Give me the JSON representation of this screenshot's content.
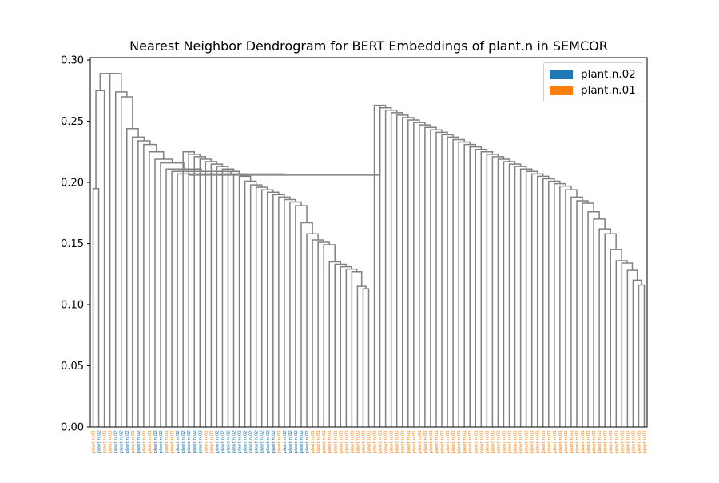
{
  "chart_data": {
    "type": "dendrogram",
    "title": "Nearest Neighbor Dendrogram for BERT Embeddings of plant.n in SEMCOR",
    "xlabel": "",
    "ylabel": "",
    "ylim": [
      0,
      0.302
    ],
    "yticks": [
      "0.00",
      "0.05",
      "0.10",
      "0.15",
      "0.20",
      "0.25",
      "0.30"
    ],
    "ytick_values": [
      0,
      0.05,
      0.1,
      0.15,
      0.2,
      0.25,
      0.3
    ],
    "grid": false,
    "legend_position": "top-right",
    "link_color": "#808080",
    "series": [
      {
        "name": "plant.n.02",
        "color": "#1f77b4"
      },
      {
        "name": "plant.n.01",
        "color": "#ff7f0e"
      }
    ],
    "leaves": [
      "plant.n.01",
      "plant.n.02",
      "plant.n.01",
      "plant.n.01",
      "plant.n.02",
      "plant.n.02",
      "plant.n.02",
      "plant.n.01",
      "plant.n.02",
      "plant.n.01",
      "plant.n.01",
      "plant.n.02",
      "plant.n.02",
      "plant.n.01",
      "plant.n.01",
      "plant.n.02",
      "plant.n.02",
      "plant.n.02",
      "plant.n.02",
      "plant.n.02",
      "plant.n.01",
      "plant.n.01",
      "plant.n.02",
      "plant.n.02",
      "plant.n.02",
      "plant.n.02",
      "plant.n.02",
      "plant.n.02",
      "plant.n.02",
      "plant.n.02",
      "plant.n.02",
      "plant.n.02",
      "plant.n.02",
      "plant.n.01",
      "plant.n.02",
      "plant.n.02",
      "plant.n.02",
      "plant.n.02",
      "plant.n.02",
      "plant.n.01",
      "plant.n.01",
      "plant.n.01",
      "plant.n.01",
      "plant.n.01",
      "plant.n.01",
      "plant.n.01",
      "plant.n.01",
      "plant.n.01",
      "plant.n.01",
      "plant.n.01",
      "plant.n.01",
      "plant.n.01",
      "plant.n.01",
      "plant.n.01",
      "plant.n.01",
      "plant.n.01",
      "plant.n.01",
      "plant.n.01",
      "plant.n.01",
      "plant.n.01",
      "plant.n.01",
      "plant.n.01",
      "plant.n.01",
      "plant.n.01",
      "plant.n.01",
      "plant.n.01",
      "plant.n.01",
      "plant.n.01",
      "plant.n.01",
      "plant.n.01",
      "plant.n.01",
      "plant.n.01",
      "plant.n.01",
      "plant.n.01",
      "plant.n.01",
      "plant.n.01",
      "plant.n.01",
      "plant.n.01",
      "plant.n.01",
      "plant.n.01",
      "plant.n.01",
      "plant.n.01",
      "plant.n.01",
      "plant.n.01",
      "plant.n.01",
      "plant.n.01",
      "plant.n.01",
      "plant.n.01",
      "plant.n.01",
      "plant.n.01",
      "plant.n.01",
      "plant.n.01",
      "plant.n.01",
      "plant.n.01",
      "plant.n.01",
      "plant.n.01",
      "plant.n.01",
      "plant.n.01",
      "plant.n.01"
    ],
    "merges": [
      {
        "a": 0,
        "b": 1,
        "h": 0.0
      },
      {
        "a": 2,
        "b": 3,
        "h": 0.0
      },
      {
        "a": 24,
        "b": 25,
        "h": 0.098
      },
      {
        "a": 57,
        "b": 58,
        "h": 0.106
      },
      {
        "a": 37,
        "b": 38,
        "h": 0.105
      },
      {
        "a": 90,
        "b": 91,
        "h": 0.116
      },
      {
        "a": 15,
        "b": 16,
        "h": 0.135
      },
      {
        "a": 92,
        "b": 93,
        "h": 0.122
      },
      {
        "a": 10,
        "b": 11,
        "h": 0.188
      },
      {
        "a": 6,
        "b": 7,
        "h": 0.194
      }
    ]
  }
}
